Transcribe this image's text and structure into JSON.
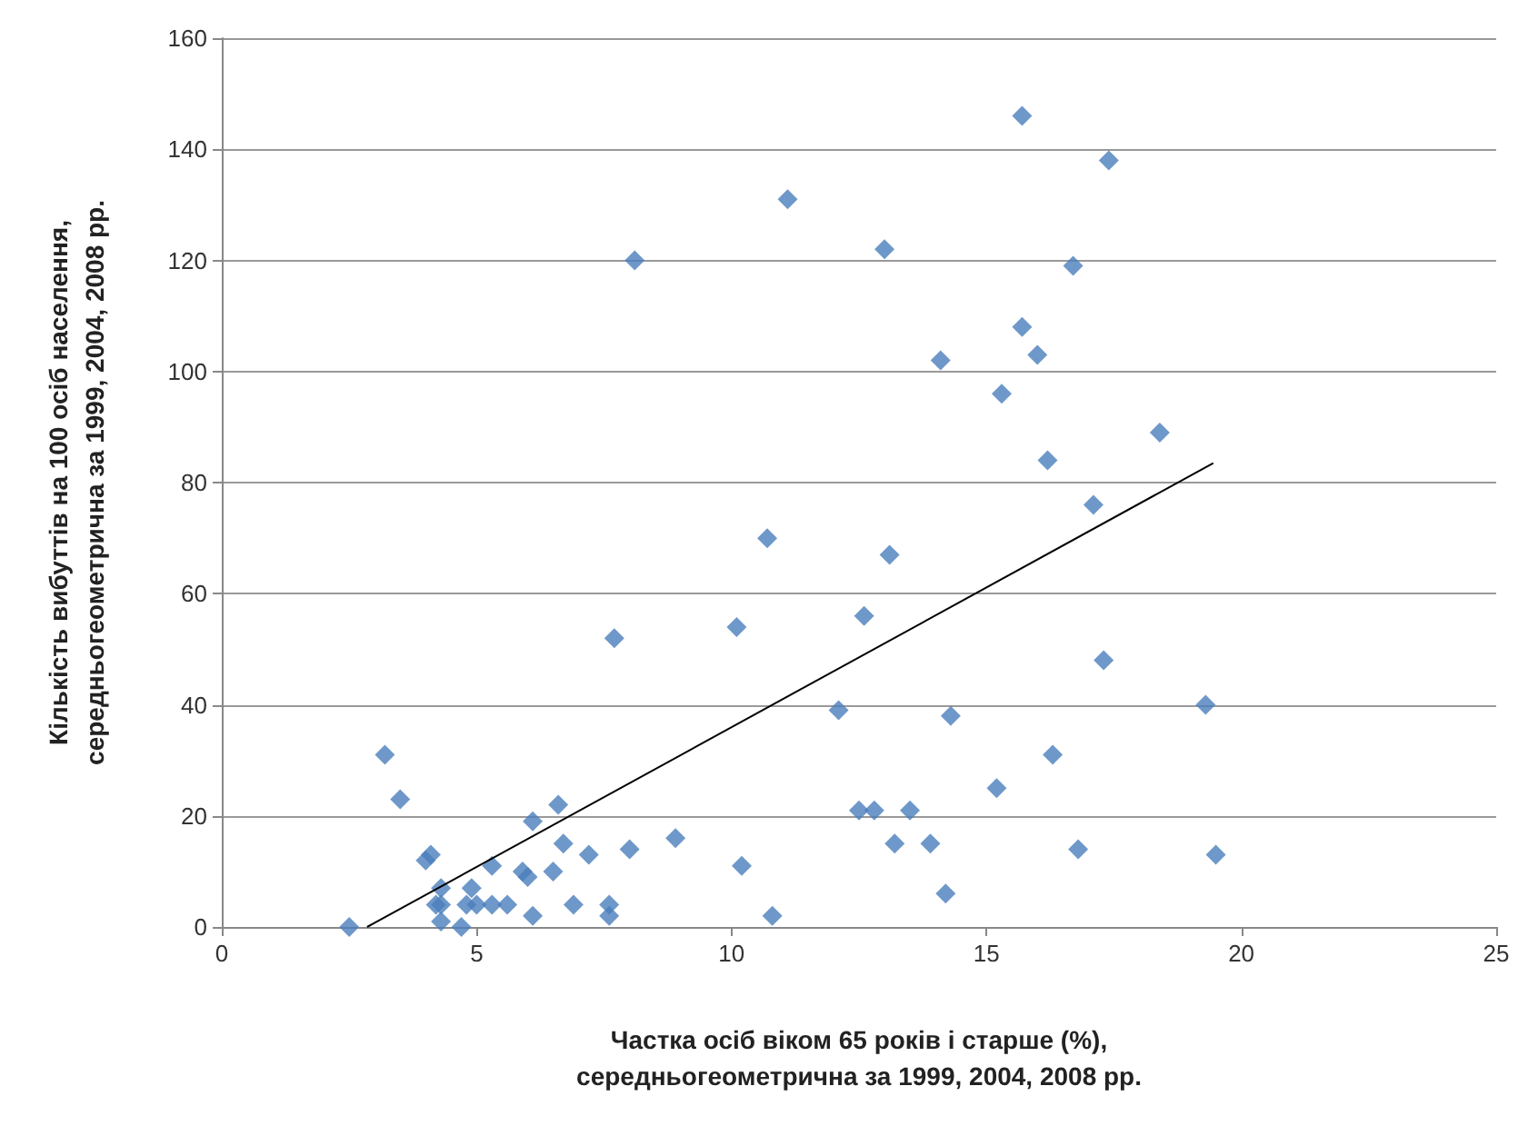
{
  "chart_data": {
    "type": "scatter",
    "xlabel": "Частка осіб віком 65 років і старше (%),\nсередньогеометрична за 1999, 2004, 2008 рр.",
    "ylabel": "Кількість вибуттів на 100 осіб населення,\nсередньогеометрична за 1999, 2004, 2008 рр.",
    "xlim": [
      0,
      25
    ],
    "xticks": [
      0,
      5,
      10,
      15,
      20,
      25
    ],
    "ylim": [
      0,
      160
    ],
    "yticks": [
      0,
      20,
      40,
      60,
      80,
      100,
      120,
      140,
      160
    ],
    "grid": "y",
    "marker": "diamond",
    "series": [
      {
        "color": "#4a7ebb",
        "x": [
          2.5,
          3.2,
          3.5,
          4.0,
          4.1,
          4.3,
          4.2,
          4.3,
          4.3,
          4.7,
          4.9,
          4.8,
          5.0,
          5.3,
          5.3,
          5.6,
          5.9,
          6.0,
          6.1,
          6.1,
          6.5,
          6.6,
          6.7,
          6.9,
          7.2,
          7.6,
          7.6,
          7.7,
          8.0,
          8.9,
          10.1,
          10.2,
          10.8,
          10.7,
          13.1,
          12.6,
          12.1,
          14.3,
          12.5,
          12.8,
          13.5,
          13.2,
          13.9,
          14.2,
          15.2,
          16.3,
          16.8,
          17.3,
          19.3,
          19.5,
          15.7,
          17.4,
          11.1,
          13.0,
          16.7,
          15.7,
          16.0,
          14.1,
          15.3,
          18.4,
          16.2,
          17.1,
          8.1
        ],
        "values": [
          0,
          31,
          23,
          12,
          13,
          7,
          4,
          4,
          1,
          0,
          7,
          4,
          4,
          11,
          4,
          4,
          10,
          9,
          19,
          2,
          10,
          22,
          15,
          4,
          13,
          4,
          2,
          52,
          14,
          16,
          54,
          11,
          2,
          70,
          67,
          56,
          39,
          38,
          21,
          21,
          21,
          15,
          15,
          6,
          25,
          31,
          14,
          48,
          40,
          13,
          146,
          138,
          131,
          122,
          119,
          108,
          103,
          102,
          96,
          89,
          84,
          76,
          120
        ]
      },
      {
        "type": "line",
        "color": "#000000",
        "marker": "none",
        "x": [
          2.85,
          19.45
        ],
        "values": [
          0,
          83.5
        ]
      }
    ]
  }
}
